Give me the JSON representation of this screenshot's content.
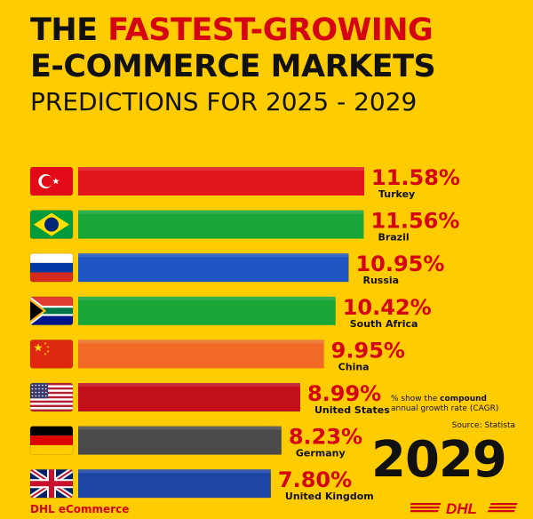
{
  "title": {
    "line1_pre": "THE ",
    "line1_highlight": "FASTEST-GROWING",
    "line2": "E-COMMERCE MARKETS",
    "line3": "PREDICTIONS FOR 2025 - 2029"
  },
  "chart_data": {
    "type": "bar",
    "orientation": "horizontal",
    "categories": [
      "Turkey",
      "Brazil",
      "Russia",
      "South Africa",
      "China",
      "United States",
      "Germany",
      "United Kingdom"
    ],
    "values": [
      11.58,
      11.56,
      10.95,
      10.42,
      9.95,
      8.99,
      8.23,
      7.8
    ],
    "value_labels": [
      "11.58%",
      "11.56%",
      "10.95%",
      "10.42%",
      "9.95%",
      "8.99%",
      "8.23%",
      "7.80%"
    ],
    "bar_colors": [
      "#E3161B",
      "#1AA636",
      "#1F56C3",
      "#1AA636",
      "#F06A26",
      "#C20F1C",
      "#4A4A4A",
      "#1D45A5"
    ],
    "flag_icons": [
      "turkey-flag-icon",
      "brazil-flag-icon",
      "russia-flag-icon",
      "south-africa-flag-icon",
      "china-flag-icon",
      "united-states-flag-icon",
      "germany-flag-icon",
      "united-kingdom-flag-icon"
    ],
    "value_color": "#D40511"
  },
  "footnote": {
    "pre": "% show the ",
    "bold": "compound",
    "rest": "annual growth rate (CAGR)"
  },
  "source": "Source: Statista",
  "year": "2029",
  "brand": "DHL eCommerce",
  "logo_text": "DHL",
  "colors": {
    "background": "#FFCC00",
    "dhl_red": "#D40511",
    "text": "#111111"
  }
}
